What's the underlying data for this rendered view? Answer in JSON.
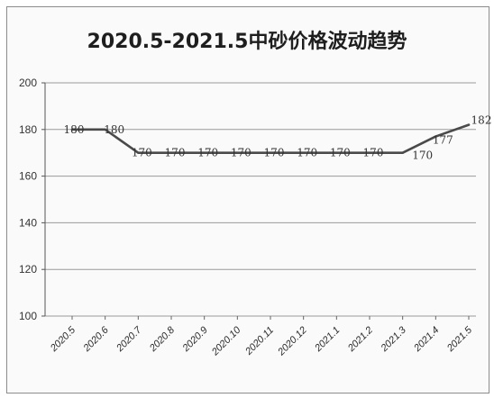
{
  "chart_data": {
    "type": "line",
    "title": "2020.5-2021.5中砂价格波动趋势",
    "categories": [
      "2020.5",
      "2020.6",
      "2020.7",
      "2020.8",
      "2020.9",
      "2020.10",
      "2020.11",
      "2020.12",
      "2021.1",
      "2021.2",
      "2021.3",
      "2021.4",
      "2021.5"
    ],
    "series": [
      {
        "values": [
          180,
          180,
          170,
          170,
          170,
          170,
          170,
          170,
          170,
          170,
          170,
          177,
          182
        ]
      }
    ],
    "data_labels": [
      "180",
      "180",
      "170",
      "170",
      "170",
      "170",
      "170",
      "170",
      "170",
      "170",
      "170",
      "177",
      "182"
    ],
    "ylim": [
      100,
      200
    ],
    "yticks": [
      100,
      120,
      140,
      160,
      180,
      200
    ],
    "grid": true,
    "xlabel": "",
    "ylabel": "",
    "colors": {
      "line": "#4a4a4a",
      "grid": "#9a9a9a",
      "text": "#2a2a2a"
    }
  }
}
